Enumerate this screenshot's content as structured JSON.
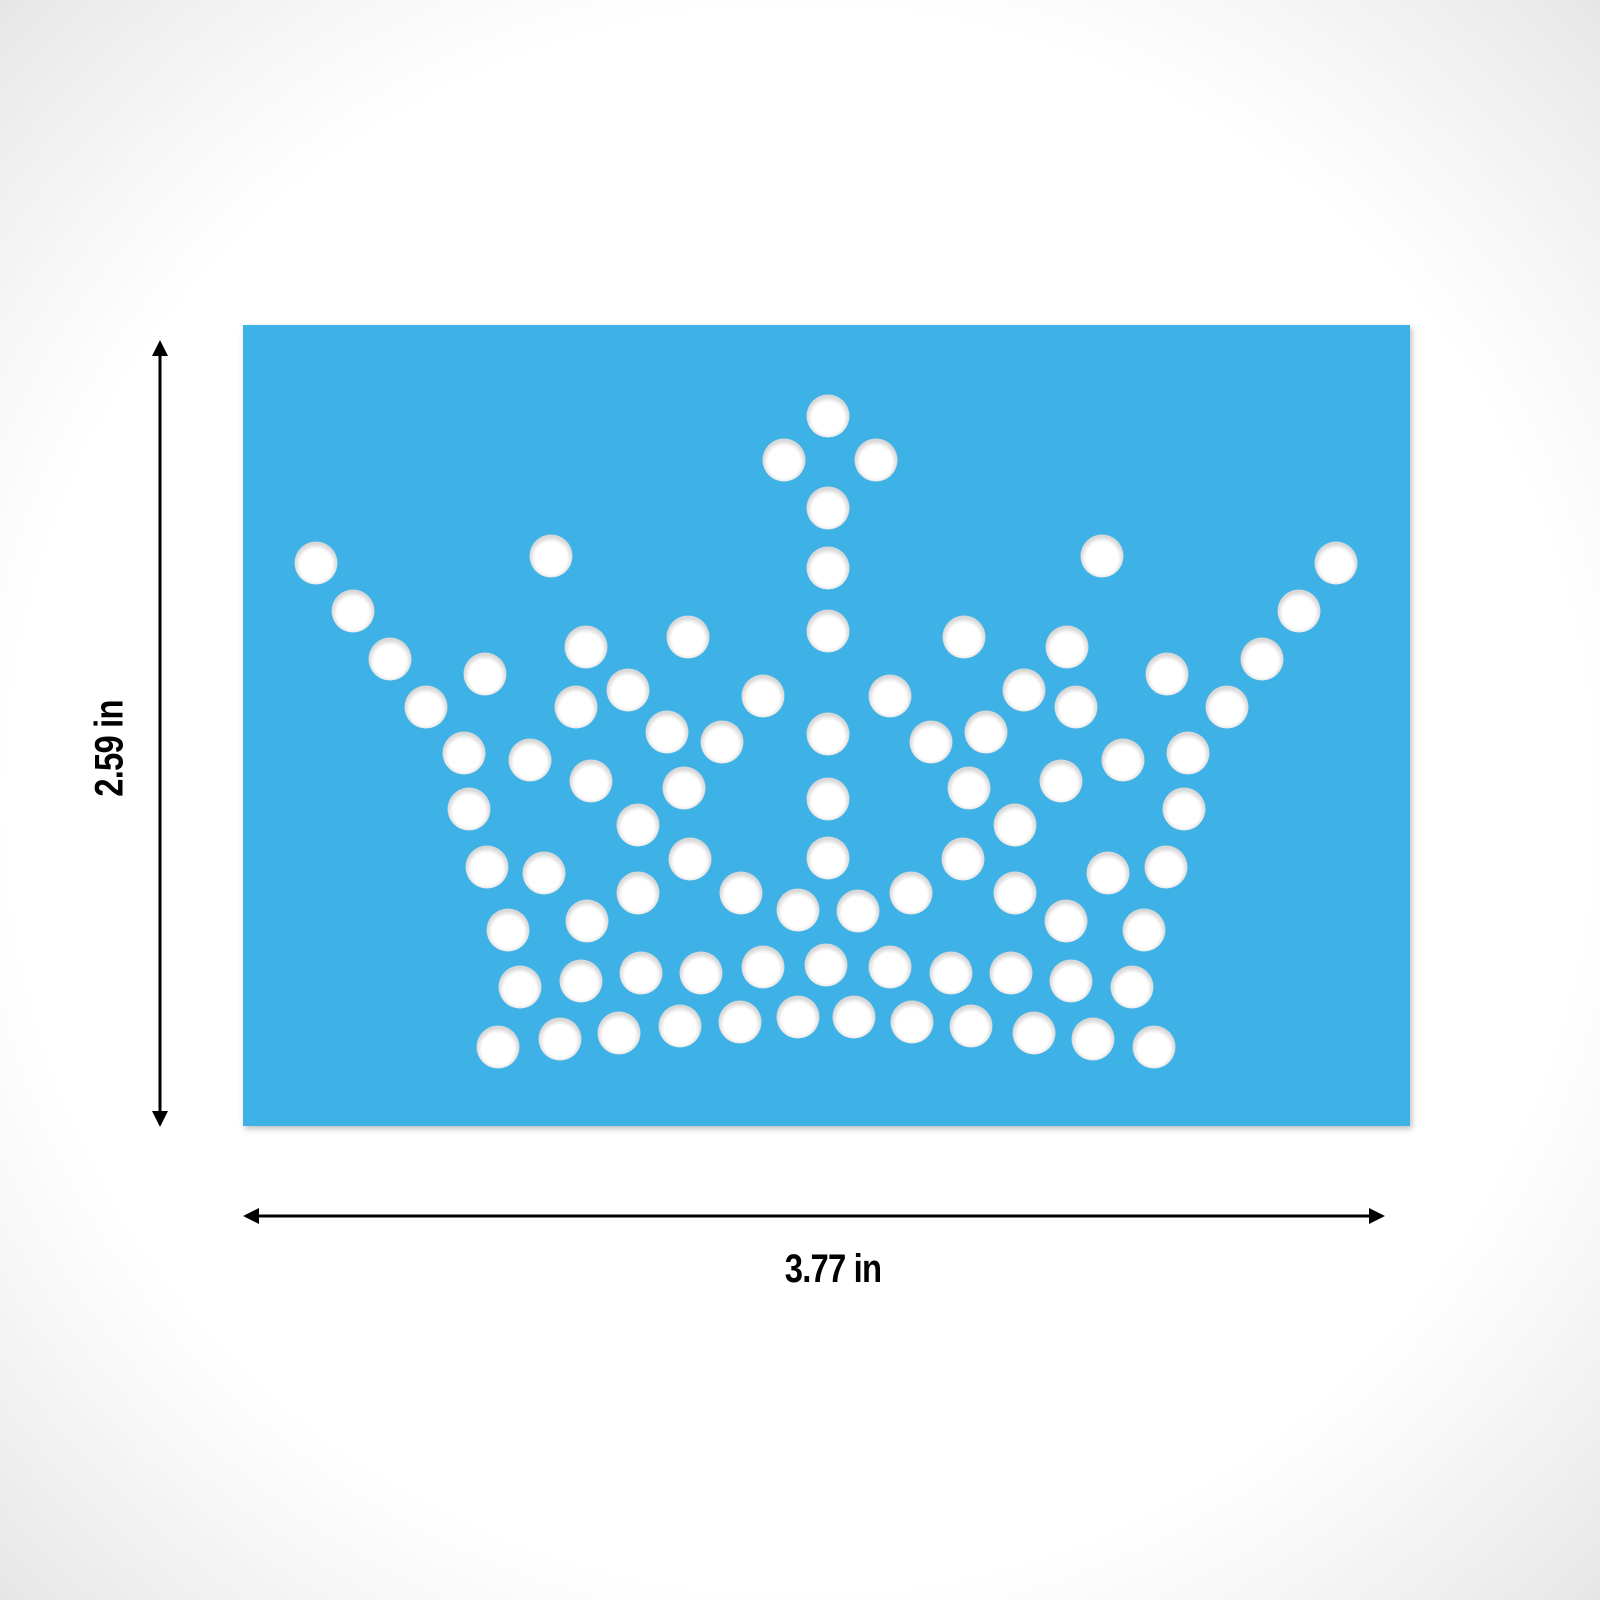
{
  "colors": {
    "stencil": "#3eb2e6",
    "hole": "#ffffff",
    "dimension_line": "#000000"
  },
  "stencil": {
    "shape": "crown made of circular holes"
  },
  "dimensions": {
    "width": "3.77 in",
    "height": "2.59 in"
  }
}
